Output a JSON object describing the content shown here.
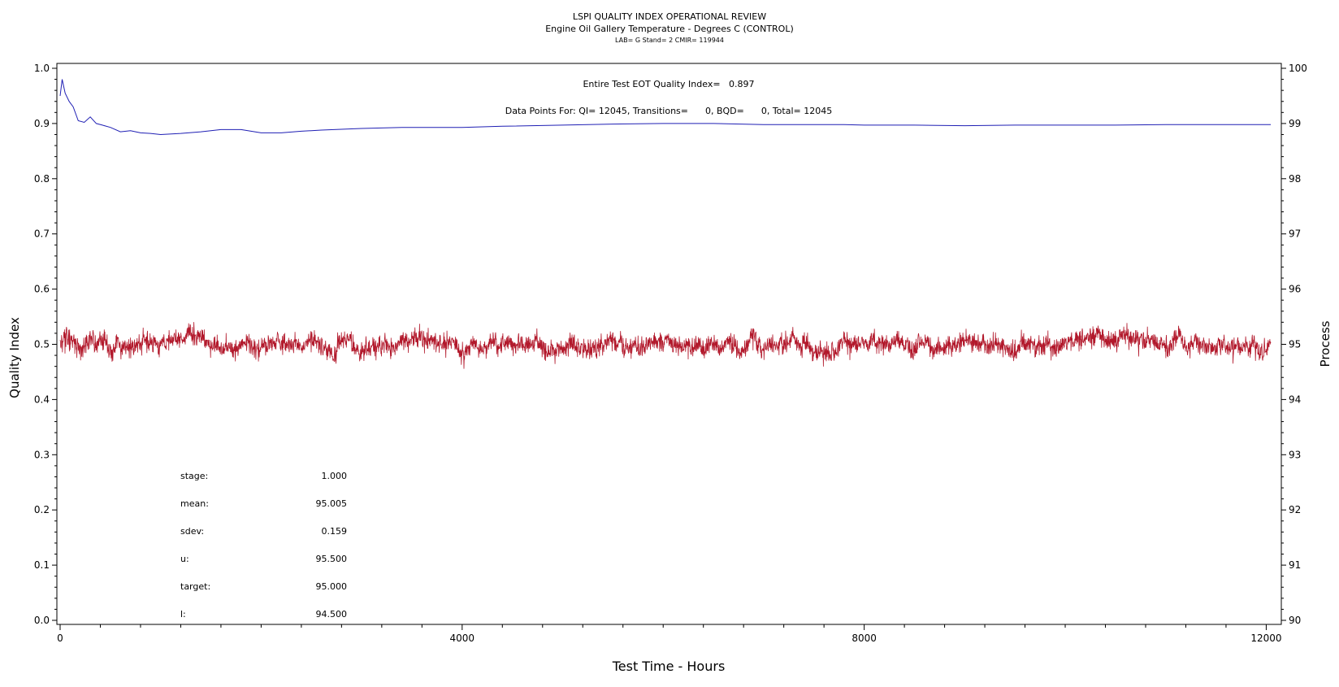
{
  "header": {
    "title": "LSPI QUALITY INDEX OPERATIONAL REVIEW",
    "subtitle": "Engine Oil Gallery Temperature - Degrees C (CONTROL)",
    "info": "LAB= G Stand= 2 CMIR= 119944"
  },
  "annotations": {
    "quality_index": "Entire Test EOT Quality Index=   0.897",
    "data_points": "Data Points For: QI= 12045, Transitions=      0, BQD=      0, Total= 12045"
  },
  "stats": [
    {
      "label": "stage:",
      "value": "1.000"
    },
    {
      "label": "mean:",
      "value": "95.005"
    },
    {
      "label": "sdev:",
      "value": "0.159"
    },
    {
      "label": "u:",
      "value": "95.500"
    },
    {
      "label": "target:",
      "value": "95.000"
    },
    {
      "label": "l:",
      "value": "94.500"
    }
  ],
  "colors": {
    "quality_index": "#1f1fb4",
    "process": "#b2182b",
    "axis": "#000000"
  },
  "chart_data": {
    "type": "line",
    "title": "LSPI QUALITY INDEX OPERATIONAL REVIEW",
    "subtitle": "Engine Oil Gallery Temperature - Degrees C (CONTROL)",
    "xlabel": "Test Time - Hours",
    "ylabel_left": "Quality Index",
    "ylabel_right": "Process",
    "xlim": [
      0,
      12045
    ],
    "ylim_left": [
      0,
      1.0
    ],
    "ylim_right": [
      90,
      100
    ],
    "x_ticks": [
      0,
      4000,
      8000,
      12000
    ],
    "x_minor_step": 400,
    "y_left_ticks": [
      0.0,
      0.1,
      0.2,
      0.3,
      0.4,
      0.5,
      0.6,
      0.7,
      0.8,
      0.9,
      1.0
    ],
    "y_left_tick_labels": [
      "0.0",
      "0.1",
      "0.2",
      "0.3",
      "0.4",
      "0.5",
      "0.6",
      "0.7",
      "0.8",
      "0.9",
      "1.0"
    ],
    "y_right_ticks": [
      90,
      91,
      92,
      93,
      94,
      95,
      96,
      97,
      98,
      99,
      100
    ],
    "y_minor_step_right": 0.2,
    "series": [
      {
        "key": "quality_index",
        "axis": "left",
        "x": [
          0,
          20,
          50,
          90,
          130,
          180,
          240,
          300,
          360,
          420,
          500,
          600,
          700,
          800,
          900,
          1000,
          1200,
          1400,
          1600,
          1800,
          2000,
          2200,
          2400,
          2600,
          3000,
          3400,
          4000,
          4400,
          5000,
          5500,
          6000,
          6500,
          7000,
          7500,
          7800,
          8000,
          8500,
          9000,
          9500,
          10000,
          10500,
          11000,
          11500,
          12045
        ],
        "y": [
          0.95,
          0.98,
          0.955,
          0.94,
          0.93,
          0.905,
          0.902,
          0.912,
          0.9,
          0.897,
          0.893,
          0.885,
          0.887,
          0.883,
          0.882,
          0.88,
          0.882,
          0.885,
          0.889,
          0.889,
          0.883,
          0.883,
          0.886,
          0.888,
          0.891,
          0.893,
          0.893,
          0.895,
          0.897,
          0.899,
          0.9,
          0.9,
          0.898,
          0.898,
          0.898,
          0.897,
          0.897,
          0.896,
          0.897,
          0.897,
          0.897,
          0.898,
          0.898,
          0.898
        ]
      },
      {
        "key": "process",
        "axis": "right",
        "noise_trace": true,
        "x": [
          0,
          300,
          600,
          1000,
          2000,
          3000,
          4000,
          5000,
          6000,
          7000,
          7500,
          8000,
          9000,
          10000,
          10200,
          11000,
          12045
        ],
        "y": [
          95.0,
          95.02,
          94.98,
          95.05,
          95.0,
          95.02,
          94.98,
          95.0,
          95.02,
          95.0,
          94.95,
          95.0,
          95.0,
          95.02,
          95.2,
          94.98,
          95.0
        ],
        "sdev": 0.159,
        "ymin": 94.4,
        "ymax": 95.85,
        "n_points": 12045
      }
    ]
  }
}
